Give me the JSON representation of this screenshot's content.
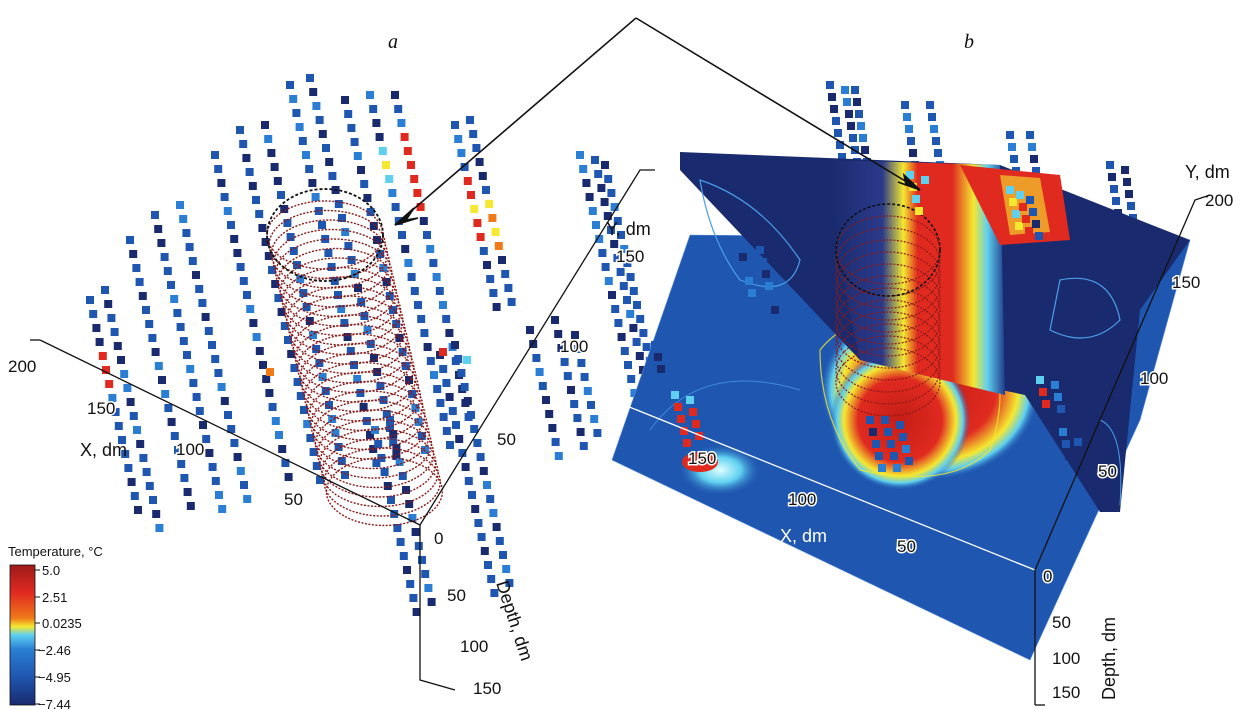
{
  "panels": {
    "a": {
      "label": "a"
    },
    "b": {
      "label": "b"
    }
  },
  "axes_a": {
    "x_label": "X, dm",
    "y_label": "Y, dm",
    "depth_label": "Depth, dm",
    "x_ticks": [
      "200",
      "150",
      "100",
      "50"
    ],
    "y_ticks": [
      "150",
      "100",
      "50"
    ],
    "depth_ticks": [
      "0",
      "50",
      "100",
      "150"
    ]
  },
  "axes_b": {
    "x_label": "X, dm",
    "y_label": "Y, dm",
    "depth_label": "Depth, dm",
    "x_ticks": [
      "150",
      "100",
      "50"
    ],
    "y_ticks": [
      "200",
      "150",
      "100",
      "50"
    ],
    "depth_ticks": [
      "0",
      "50",
      "100",
      "150"
    ]
  },
  "colorbar": {
    "title": "Temperature, °C",
    "ticks": [
      "5.0",
      "2.51",
      "0.0235",
      "−2.46",
      "−4.95",
      "−7.44"
    ]
  },
  "colors": {
    "cold_dark": "#1a2a6e",
    "cold": "#1f56b0",
    "mid": "#2a7fd4",
    "cyan": "#5fd0f0",
    "yellow": "#f5e830",
    "orange": "#f07a1a",
    "warm": "#e02a20",
    "hot": "#9e1a1a",
    "cylinder": "#8a1a1a"
  }
}
